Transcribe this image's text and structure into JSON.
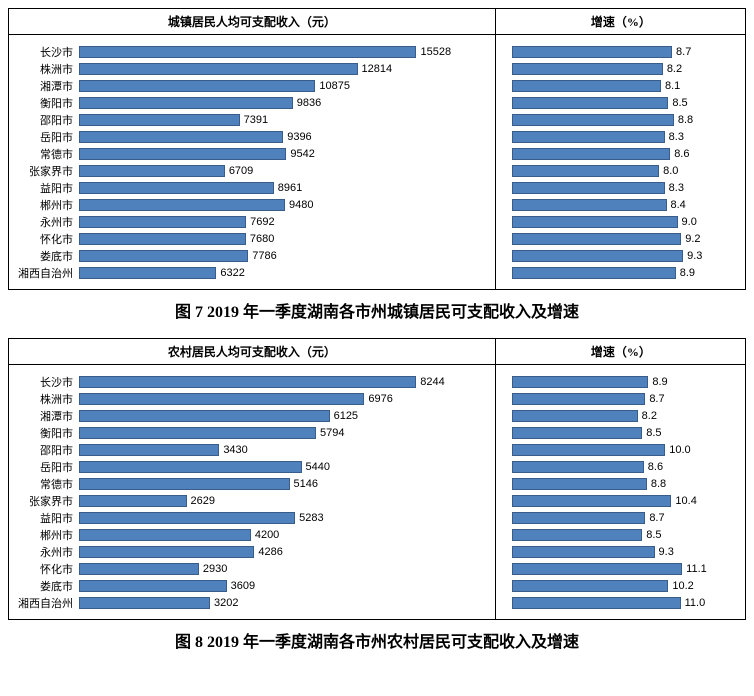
{
  "figures": [
    {
      "caption": "图 7  2019 年一季度湖南各市州城镇居民可支配收入及增速",
      "left_title": "城镇居民人均可支配收入（元）",
      "right_title": "增速（%）",
      "categories": [
        "长沙市",
        "株洲市",
        "湘潭市",
        "衡阳市",
        "邵阳市",
        "岳阳市",
        "常德市",
        "张家界市",
        "益阳市",
        "郴州市",
        "永州市",
        "怀化市",
        "娄底市",
        "湘西自治州"
      ],
      "left_values": [
        15528,
        12814,
        10875,
        9836,
        7391,
        9396,
        9542,
        6709,
        8961,
        9480,
        7692,
        7680,
        7786,
        6322
      ],
      "left_max": 16000,
      "left_decimals": 0,
      "right_values": [
        8.7,
        8.2,
        8.1,
        8.5,
        8.8,
        8.3,
        8.6,
        8.0,
        8.3,
        8.4,
        9.0,
        9.2,
        9.3,
        8.9
      ],
      "right_max": 10.0,
      "right_decimals": 1
    },
    {
      "caption": "图 8  2019 年一季度湖南各市州农村居民可支配收入及增速",
      "left_title": "农村居民人均可支配收入（元）",
      "right_title": "增速（%）",
      "categories": [
        "长沙市",
        "株洲市",
        "湘潭市",
        "衡阳市",
        "邵阳市",
        "岳阳市",
        "常德市",
        "张家界市",
        "益阳市",
        "郴州市",
        "永州市",
        "怀化市",
        "娄底市",
        "湘西自治州"
      ],
      "left_values": [
        8244,
        6976,
        6125,
        5794,
        3430,
        5440,
        5146,
        2629,
        5283,
        4200,
        4286,
        2930,
        3609,
        3202
      ],
      "left_max": 8500,
      "left_decimals": 0,
      "right_values": [
        8.9,
        8.7,
        8.2,
        8.5,
        10.0,
        8.6,
        8.8,
        10.4,
        8.7,
        8.5,
        9.3,
        11.1,
        10.2,
        11.0
      ],
      "right_max": 12.0,
      "right_decimals": 1
    }
  ],
  "style": {
    "bar_color": "#4f81bd",
    "bar_border": "#385d8a",
    "background": "#ffffff",
    "label_fontsize": 11,
    "title_fontsize": 12,
    "caption_fontsize": 16
  }
}
